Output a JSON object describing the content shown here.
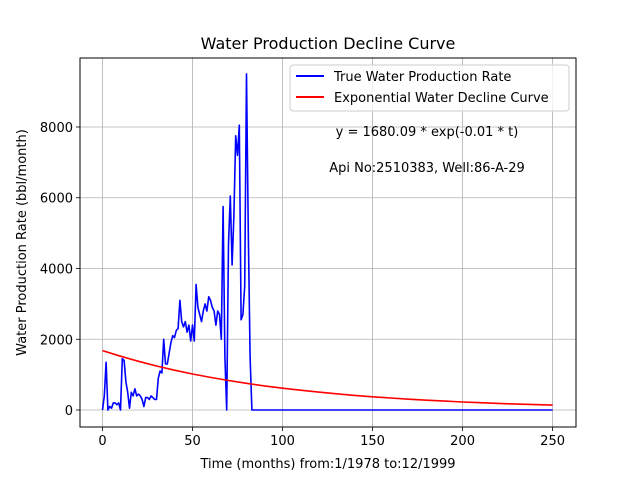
{
  "chart_data": {
    "type": "line",
    "title": "Water Production Decline Curve",
    "xlabel": "Time (months) from:1/1978 to:12/1999",
    "ylabel": "Water Production Rate (bbl/month)",
    "xlim": [
      -12.5,
      263
    ],
    "ylim": [
      -480,
      9950
    ],
    "xticks": [
      0,
      50,
      100,
      150,
      200,
      250
    ],
    "yticks": [
      0,
      2000,
      4000,
      6000,
      8000
    ],
    "grid": true,
    "legend_position": "upper-right",
    "annotations": [
      {
        "text": "y = 1680.09 * exp(-0.01 * t)",
        "x": 180,
        "y": 7800
      },
      {
        "text": "Api No:2510383, Well:86-A-29",
        "x": 180,
        "y": 6800
      }
    ],
    "series": [
      {
        "name": "True Water Production Rate",
        "color": "#0000ff",
        "x": [
          0,
          1,
          2,
          3,
          4,
          5,
          6,
          7,
          8,
          9,
          10,
          11,
          12,
          13,
          14,
          15,
          16,
          17,
          18,
          19,
          20,
          21,
          22,
          23,
          24,
          25,
          26,
          27,
          28,
          29,
          30,
          31,
          32,
          33,
          34,
          35,
          36,
          37,
          38,
          39,
          40,
          41,
          42,
          43,
          44,
          45,
          46,
          47,
          48,
          49,
          50,
          51,
          52,
          53,
          54,
          55,
          56,
          57,
          58,
          59,
          60,
          61,
          62,
          63,
          64,
          65,
          66,
          67,
          68,
          69,
          70,
          71,
          72,
          73,
          74,
          75,
          76,
          77,
          78,
          79,
          80,
          81,
          82,
          83,
          84,
          85,
          100,
          150,
          200,
          250
        ],
        "values": [
          0,
          400,
          1350,
          0,
          100,
          50,
          200,
          200,
          150,
          200,
          0,
          1450,
          1400,
          800,
          500,
          50,
          500,
          400,
          600,
          400,
          450,
          400,
          300,
          100,
          350,
          350,
          300,
          400,
          350,
          300,
          300,
          900,
          1100,
          1050,
          2000,
          1300,
          1300,
          1600,
          1900,
          2100,
          2050,
          2250,
          2300,
          3100,
          2500,
          2350,
          2500,
          2200,
          2400,
          1950,
          2400,
          1950,
          3550,
          2900,
          2700,
          2500,
          2800,
          3000,
          2800,
          3200,
          3100,
          2900,
          2800,
          2400,
          2800,
          2700,
          2000,
          5750,
          1500,
          0,
          4700,
          6050,
          4100,
          5500,
          7750,
          7200,
          8050,
          2550,
          2700,
          3500,
          9500,
          5000,
          1500,
          0,
          0,
          0,
          0,
          0,
          0,
          0
        ]
      },
      {
        "name": "Exponential Water Decline Curve",
        "color": "#ff0000",
        "x": [
          0,
          10,
          20,
          30,
          40,
          50,
          60,
          70,
          80,
          90,
          100,
          110,
          120,
          130,
          140,
          150,
          160,
          170,
          180,
          190,
          200,
          210,
          220,
          230,
          240,
          250
        ],
        "values": [
          1680,
          1520,
          1376,
          1245,
          1126,
          1019,
          922,
          835,
          755,
          683,
          618,
          559,
          506,
          458,
          414,
          375,
          339,
          307,
          278,
          251,
          227,
          206,
          186,
          168,
          152,
          138
        ]
      }
    ]
  }
}
